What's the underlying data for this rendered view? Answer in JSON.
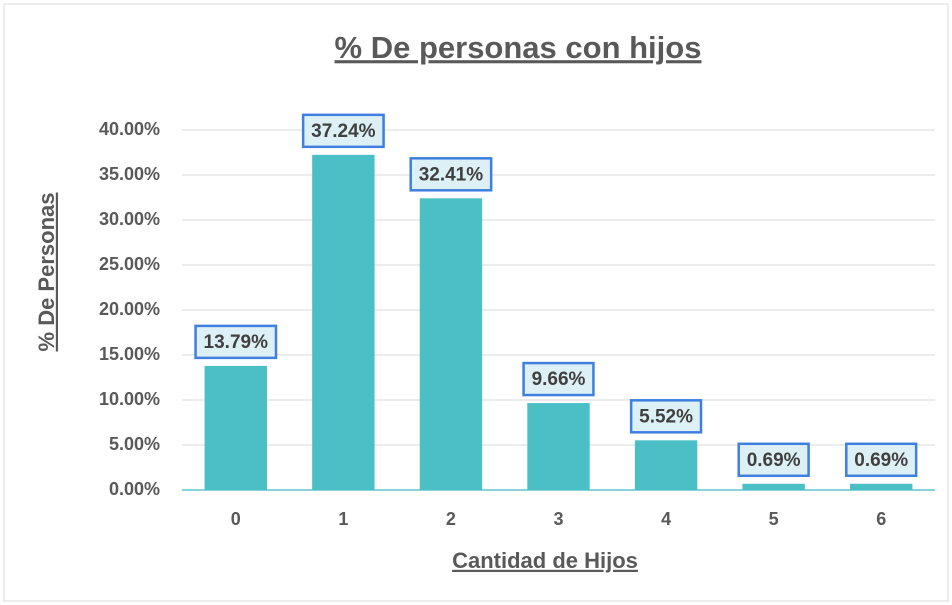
{
  "chart_data": {
    "type": "bar",
    "title": "% De personas con hijos",
    "x_label": "Cantidad de Hijos",
    "y_label": "% De Personas",
    "categories": [
      "0",
      "1",
      "2",
      "3",
      "4",
      "5",
      "6"
    ],
    "values": [
      13.79,
      37.24,
      32.41,
      9.66,
      5.52,
      0.69,
      0.69
    ],
    "value_labels": [
      "13.79%",
      "37.24%",
      "32.41%",
      "9.66%",
      "5.52%",
      "0.69%",
      "0.69%"
    ],
    "color": "#4bbfc6",
    "ylim": [
      0,
      40
    ],
    "yticks": [
      {
        "value": 0,
        "label": "0.00%"
      },
      {
        "value": 5,
        "label": "5.00%"
      },
      {
        "value": 10,
        "label": "10.00%"
      },
      {
        "value": 15,
        "label": "15.00%"
      },
      {
        "value": 20,
        "label": "20.00%"
      },
      {
        "value": 25,
        "label": "25.00%"
      },
      {
        "value": 30,
        "label": "30.00%"
      },
      {
        "value": 35,
        "label": "35.00%"
      },
      {
        "value": 40,
        "label": "40.00%"
      }
    ],
    "grid": true
  }
}
